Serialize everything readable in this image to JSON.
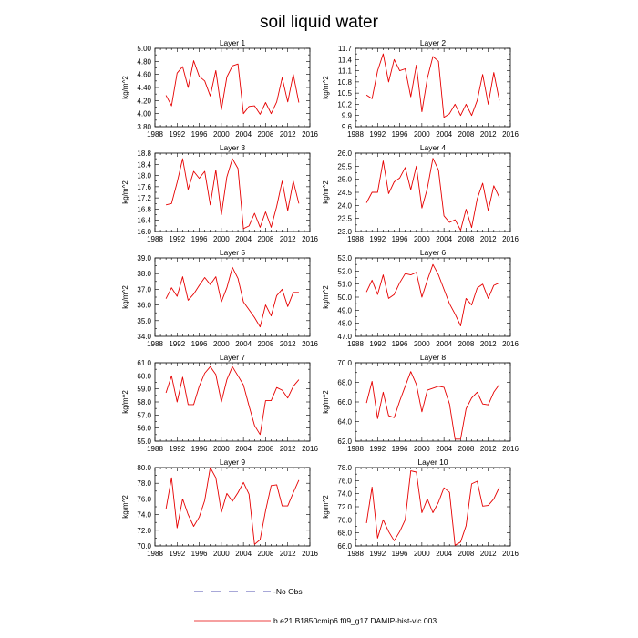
{
  "title": "soil liquid water",
  "line_color": "#e60000",
  "legend": {
    "obs_label": "No Obs",
    "model_label": "b.e21.B1850cmip6.f09_g17.DAMIP-hist-vlc.003"
  },
  "chart_data": [
    {
      "type": "line",
      "title": "Layer 1",
      "ylabel": "kg/m^2",
      "xlim": [
        1988,
        2016
      ],
      "xticks": [
        1988,
        1992,
        1996,
        2000,
        2004,
        2008,
        2012,
        2016
      ],
      "ylim": [
        3.8,
        5.0
      ],
      "yticks": [
        "3.80",
        "4.00",
        "4.20",
        "4.40",
        "4.60",
        "4.80",
        "5.00"
      ],
      "x": [
        1990,
        1991,
        1992,
        1993,
        1994,
        1995,
        1996,
        1997,
        1998,
        1999,
        2000,
        2001,
        2002,
        2003,
        2004,
        2005,
        2006,
        2007,
        2008,
        2009,
        2010,
        2011,
        2012,
        2013,
        2014
      ],
      "series": [
        {
          "values": [
            4.28,
            4.12,
            4.62,
            4.72,
            4.4,
            4.81,
            4.57,
            4.5,
            4.27,
            4.66,
            4.06,
            4.56,
            4.73,
            4.76,
            4.0,
            4.11,
            4.12,
            3.99,
            4.17,
            4.0,
            4.18,
            4.55,
            4.18,
            4.6,
            4.17
          ]
        }
      ]
    },
    {
      "type": "line",
      "title": "Layer 2",
      "ylabel": "kg/m^2",
      "xlim": [
        1988,
        2016
      ],
      "xticks": [
        1988,
        1992,
        1996,
        2000,
        2004,
        2008,
        2012,
        2016
      ],
      "ylim": [
        9.6,
        11.7
      ],
      "yticks": [
        "9.6",
        "9.9",
        "10.2",
        "10.5",
        "10.8",
        "11.1",
        "11.4",
        "11.7"
      ],
      "x": [
        1990,
        1991,
        1992,
        1993,
        1994,
        1995,
        1996,
        1997,
        1998,
        1999,
        2000,
        2001,
        2002,
        2003,
        2004,
        2005,
        2006,
        2007,
        2008,
        2009,
        2010,
        2011,
        2012,
        2013,
        2014
      ],
      "series": [
        {
          "values": [
            10.45,
            10.35,
            11.1,
            11.55,
            10.8,
            11.4,
            11.1,
            11.15,
            10.4,
            11.25,
            10.0,
            10.9,
            11.48,
            11.35,
            9.85,
            9.95,
            10.2,
            9.9,
            10.2,
            9.9,
            10.3,
            11.0,
            10.2,
            11.05,
            10.3
          ]
        }
      ]
    },
    {
      "type": "line",
      "title": "Layer 3",
      "ylabel": "kg/m^2",
      "xlim": [
        1988,
        2016
      ],
      "xticks": [
        1988,
        1992,
        1996,
        2000,
        2004,
        2008,
        2012,
        2016
      ],
      "ylim": [
        16.0,
        18.8
      ],
      "yticks": [
        "16.0",
        "16.4",
        "16.8",
        "17.2",
        "17.6",
        "18.0",
        "18.4",
        "18.8"
      ],
      "x": [
        1990,
        1991,
        1992,
        1993,
        1994,
        1995,
        1996,
        1997,
        1998,
        1999,
        2000,
        2001,
        2002,
        2003,
        2004,
        2005,
        2006,
        2007,
        2008,
        2009,
        2010,
        2011,
        2012,
        2013,
        2014
      ],
      "series": [
        {
          "values": [
            16.95,
            17.0,
            17.75,
            18.6,
            17.5,
            18.15,
            17.9,
            18.15,
            16.95,
            18.2,
            16.6,
            17.95,
            18.6,
            18.25,
            16.1,
            16.2,
            16.65,
            16.15,
            16.7,
            16.15,
            16.9,
            17.8,
            16.75,
            17.8,
            17.0
          ]
        }
      ]
    },
    {
      "type": "line",
      "title": "Layer 4",
      "ylabel": "kg/m^2",
      "xlim": [
        1988,
        2016
      ],
      "xticks": [
        1988,
        1992,
        1996,
        2000,
        2004,
        2008,
        2012,
        2016
      ],
      "ylim": [
        23.0,
        26.0
      ],
      "yticks": [
        "23.0",
        "23.5",
        "24.0",
        "24.5",
        "25.0",
        "25.5",
        "26.0"
      ],
      "x": [
        1990,
        1991,
        1992,
        1993,
        1994,
        1995,
        1996,
        1997,
        1998,
        1999,
        2000,
        2001,
        2002,
        2003,
        2004,
        2005,
        2006,
        2007,
        2008,
        2009,
        2010,
        2011,
        2012,
        2013,
        2014
      ],
      "series": [
        {
          "values": [
            24.1,
            24.5,
            24.5,
            25.7,
            24.45,
            24.9,
            25.05,
            25.45,
            24.6,
            25.5,
            23.9,
            24.65,
            25.8,
            25.35,
            23.6,
            23.35,
            23.45,
            23.05,
            23.85,
            23.15,
            24.25,
            24.85,
            23.8,
            24.75,
            24.3
          ]
        }
      ]
    },
    {
      "type": "line",
      "title": "Layer 5",
      "ylabel": "kg/m^2",
      "xlim": [
        1988,
        2016
      ],
      "xticks": [
        1988,
        1992,
        1996,
        2000,
        2004,
        2008,
        2012,
        2016
      ],
      "ylim": [
        34.0,
        39.0
      ],
      "yticks": [
        "34.0",
        "35.0",
        "36.0",
        "37.0",
        "38.0",
        "39.0"
      ],
      "x": [
        1990,
        1991,
        1992,
        1993,
        1994,
        1995,
        1996,
        1997,
        1998,
        1999,
        2000,
        2001,
        2002,
        2003,
        2004,
        2005,
        2006,
        2007,
        2008,
        2009,
        2010,
        2011,
        2012,
        2013,
        2014
      ],
      "series": [
        {
          "values": [
            36.4,
            37.1,
            36.55,
            37.8,
            36.3,
            36.7,
            37.25,
            37.75,
            37.3,
            37.8,
            36.2,
            37.1,
            38.4,
            37.7,
            36.2,
            35.7,
            35.2,
            34.6,
            36.0,
            35.3,
            36.6,
            37.0,
            35.9,
            36.8,
            36.8
          ]
        }
      ]
    },
    {
      "type": "line",
      "title": "Layer 6",
      "ylabel": "kg/m^2",
      "xlim": [
        1988,
        2016
      ],
      "xticks": [
        1988,
        1992,
        1996,
        2000,
        2004,
        2008,
        2012,
        2016
      ],
      "ylim": [
        47.0,
        53.0
      ],
      "yticks": [
        "47.0",
        "48.0",
        "49.0",
        "50.0",
        "51.0",
        "52.0",
        "53.0"
      ],
      "x": [
        1990,
        1991,
        1992,
        1993,
        1994,
        1995,
        1996,
        1997,
        1998,
        1999,
        2000,
        2001,
        2002,
        2003,
        2004,
        2005,
        2006,
        2007,
        2008,
        2009,
        2010,
        2011,
        2012,
        2013,
        2014
      ],
      "series": [
        {
          "values": [
            50.4,
            51.3,
            50.2,
            51.7,
            49.9,
            50.2,
            51.1,
            51.8,
            51.7,
            51.9,
            50.0,
            51.3,
            52.5,
            51.7,
            50.6,
            49.5,
            48.7,
            47.8,
            49.9,
            49.4,
            50.7,
            51.0,
            49.9,
            50.9,
            51.1
          ]
        }
      ]
    },
    {
      "type": "line",
      "title": "Layer 7",
      "ylabel": "kg/m^2",
      "xlim": [
        1988,
        2016
      ],
      "xticks": [
        1988,
        1992,
        1996,
        2000,
        2004,
        2008,
        2012,
        2016
      ],
      "ylim": [
        55.0,
        61.0
      ],
      "yticks": [
        "55.0",
        "56.0",
        "57.0",
        "58.0",
        "59.0",
        "60.0",
        "61.0"
      ],
      "x": [
        1990,
        1991,
        1992,
        1993,
        1994,
        1995,
        1996,
        1997,
        1998,
        1999,
        2000,
        2001,
        2002,
        2003,
        2004,
        2005,
        2006,
        2007,
        2008,
        2009,
        2010,
        2011,
        2012,
        2013,
        2014
      ],
      "series": [
        {
          "values": [
            58.7,
            60.0,
            58.0,
            59.9,
            57.8,
            57.8,
            59.2,
            60.2,
            60.7,
            60.1,
            58.0,
            59.7,
            60.7,
            60.0,
            59.3,
            57.7,
            56.2,
            55.5,
            58.1,
            58.1,
            59.1,
            58.9,
            58.3,
            59.2,
            59.7
          ]
        }
      ]
    },
    {
      "type": "line",
      "title": "Layer 8",
      "ylabel": "kg/m^2",
      "xlim": [
        1988,
        2016
      ],
      "xticks": [
        1988,
        1992,
        1996,
        2000,
        2004,
        2008,
        2012,
        2016
      ],
      "ylim": [
        62.0,
        70.0
      ],
      "yticks": [
        "62.0",
        "64.0",
        "66.0",
        "68.0",
        "70.0"
      ],
      "x": [
        1990,
        1991,
        1992,
        1993,
        1994,
        1995,
        1996,
        1997,
        1998,
        1999,
        2000,
        2001,
        2002,
        2003,
        2004,
        2005,
        2006,
        2007,
        2008,
        2009,
        2010,
        2011,
        2012,
        2013,
        2014
      ],
      "series": [
        {
          "values": [
            65.9,
            68.1,
            64.3,
            67.0,
            64.6,
            64.4,
            66.1,
            67.6,
            69.1,
            67.8,
            65.0,
            67.2,
            67.4,
            67.6,
            67.5,
            65.8,
            62.2,
            62.2,
            65.3,
            66.4,
            67.0,
            65.8,
            65.7,
            67.0,
            67.8
          ]
        }
      ]
    },
    {
      "type": "line",
      "title": "Layer 9",
      "ylabel": "kg/m^2",
      "xlim": [
        1988,
        2016
      ],
      "xticks": [
        1988,
        1992,
        1996,
        2000,
        2004,
        2008,
        2012,
        2016
      ],
      "ylim": [
        70.0,
        80.0
      ],
      "yticks": [
        "70.0",
        "72.0",
        "74.0",
        "76.0",
        "78.0",
        "80.0"
      ],
      "x": [
        1990,
        1991,
        1992,
        1993,
        1994,
        1995,
        1996,
        1997,
        1998,
        1999,
        2000,
        2001,
        2002,
        2003,
        2004,
        2005,
        2006,
        2007,
        2008,
        2009,
        2010,
        2011,
        2012,
        2013,
        2014
      ],
      "series": [
        {
          "values": [
            74.7,
            78.7,
            72.3,
            76.0,
            74.0,
            72.5,
            73.7,
            75.8,
            80.0,
            78.7,
            74.3,
            76.7,
            75.7,
            76.8,
            78.1,
            76.6,
            70.2,
            70.8,
            74.5,
            77.7,
            77.8,
            75.1,
            75.1,
            76.8,
            78.4
          ]
        }
      ]
    },
    {
      "type": "line",
      "title": "Layer 10",
      "ylabel": "kg/m^2",
      "xlim": [
        1988,
        2016
      ],
      "xticks": [
        1988,
        1992,
        1996,
        2000,
        2004,
        2008,
        2012,
        2016
      ],
      "ylim": [
        66.0,
        78.0
      ],
      "yticks": [
        "66.0",
        "68.0",
        "70.0",
        "72.0",
        "74.0",
        "76.0",
        "78.0"
      ],
      "x": [
        1990,
        1991,
        1992,
        1993,
        1994,
        1995,
        1996,
        1997,
        1998,
        1999,
        2000,
        2001,
        2002,
        2003,
        2004,
        2005,
        2006,
        2007,
        2008,
        2009,
        2010,
        2011,
        2012,
        2013,
        2014
      ],
      "series": [
        {
          "values": [
            69.5,
            75.0,
            67.2,
            70.0,
            68.2,
            66.8,
            68.2,
            70.0,
            77.5,
            77.3,
            71.1,
            73.2,
            71.1,
            72.7,
            74.9,
            74.2,
            66.1,
            66.6,
            69.1,
            75.5,
            75.9,
            72.1,
            72.2,
            73.2,
            75.0
          ]
        }
      ]
    }
  ]
}
